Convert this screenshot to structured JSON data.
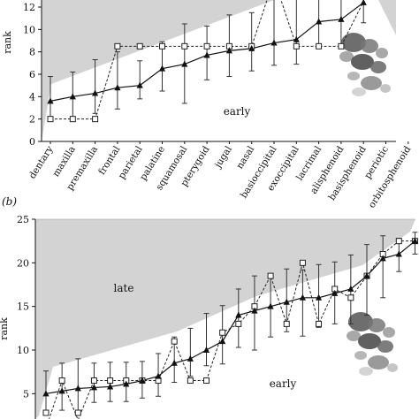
{
  "panel_b_label": "(b)",
  "chart_data": [
    {
      "type": "line",
      "ylabel": "rank",
      "ylim": [
        0,
        12
      ],
      "yticks": [
        0,
        2,
        4,
        6,
        8,
        10,
        12
      ],
      "categories": [
        "dentary",
        "maxilla",
        "premaxilla",
        "frontal",
        "parietal",
        "palatine",
        "squamosal",
        "pterygoid",
        "jugal",
        "nasal",
        "basioccipital",
        "exoccipital",
        "lacrimal",
        "alisphenoid",
        "basisphenoid",
        "periotic",
        "orbitosphenoid"
      ],
      "regions": [
        {
          "label": "early"
        }
      ],
      "series": [
        {
          "marker": "filled-triangle",
          "line": "solid",
          "values": [
            3.6,
            4.0,
            4.3,
            4.8,
            5.0,
            6.5,
            6.9,
            7.7,
            8.1,
            8.3,
            8.8,
            9.1,
            10.7,
            10.9,
            12.4,
            null,
            null
          ],
          "err_low": [
            1.8,
            2.0,
            1.8,
            1.9,
            1.2,
            2.0,
            3.5,
            2.2,
            2.3,
            2.0,
            2.0,
            2.2,
            2.2,
            2.3,
            1.8,
            null,
            null
          ],
          "err_high": [
            2.2,
            2.2,
            3.0,
            3.2,
            2.2,
            2.4,
            3.6,
            2.6,
            3.2,
            3.2,
            4.2,
            3.8,
            2.6,
            4.0,
            1.4,
            null,
            null
          ]
        },
        {
          "marker": "open-square",
          "line": "dashed",
          "values": [
            2.0,
            2.0,
            2.0,
            8.5,
            8.5,
            8.5,
            8.5,
            8.5,
            8.5,
            8.5,
            14.5,
            8.5,
            8.5,
            8.5,
            12.5,
            null,
            null
          ]
        }
      ],
      "grid": false,
      "legend": "none"
    },
    {
      "type": "line",
      "ylabel": "rank",
      "ylim": [
        2.5,
        25
      ],
      "yticks": [
        5,
        10,
        15,
        20,
        25
      ],
      "regions": [
        {
          "label": "late"
        },
        {
          "label": "early"
        }
      ],
      "series": [
        {
          "marker": "filled-triangle",
          "line": "solid",
          "values": [
            5.0,
            5.3,
            5.6,
            5.7,
            5.8,
            6.1,
            6.5,
            7.0,
            8.5,
            9.0,
            10.0,
            11.0,
            14.0,
            14.5,
            15.0,
            15.5,
            16.0,
            16.0,
            16.5,
            17.0,
            18.5,
            20.5,
            21.0,
            22.5
          ],
          "err_low": [
            2.4,
            2.2,
            2.5,
            1.7,
            1.7,
            2.0,
            2.0,
            2.3,
            2.2,
            2.0,
            1.8,
            2.6,
            3.7,
            4.5,
            3.5,
            3.4,
            4.4,
            3.4,
            3.5,
            4.0,
            4.5,
            4.5,
            2.0,
            1.5
          ],
          "err_high": [
            2.6,
            3.2,
            3.4,
            2.8,
            2.8,
            2.5,
            2.2,
            2.6,
            3.0,
            3.5,
            4.2,
            4.1,
            3.0,
            4.0,
            3.6,
            3.8,
            3.2,
            3.8,
            3.6,
            3.9,
            3.6,
            2.6,
            1.8,
            1.0
          ]
        },
        {
          "marker": "open-square",
          "line": "dashed",
          "values": [
            1.0,
            6.5,
            2.0,
            6.5,
            6.5,
            6.5,
            6.5,
            6.5,
            11.0,
            6.5,
            6.5,
            12.0,
            13.0,
            15.0,
            18.5,
            13.0,
            20.0,
            13.0,
            17.0,
            16.0,
            18.5,
            21.0,
            22.5,
            22.5
          ]
        }
      ],
      "grid": false,
      "legend": "none"
    }
  ]
}
